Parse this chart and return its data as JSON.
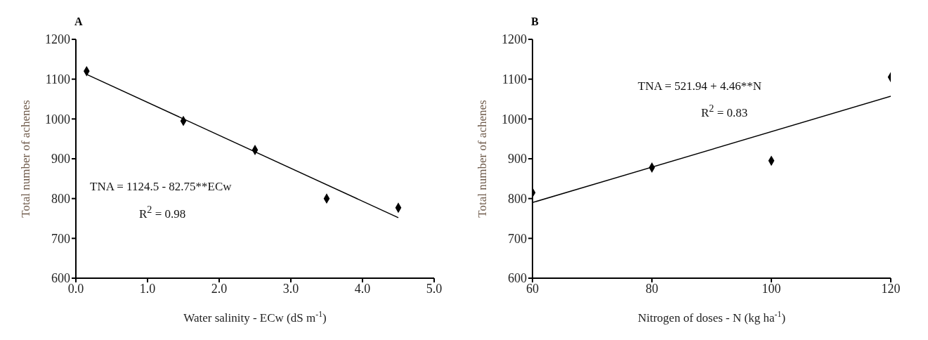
{
  "chart_data": [
    {
      "type": "scatter",
      "title": "A",
      "xlabel": "Water salinity - ECw (dS m$^{-1}$)",
      "ylabel": "Total number of achenes",
      "xlim": [
        0,
        5
      ],
      "xticks": [
        {
          "value": 0,
          "label": "0.0"
        },
        {
          "value": 1,
          "label": "1.0"
        },
        {
          "value": 2,
          "label": "2.0"
        },
        {
          "value": 3,
          "label": "3.0"
        },
        {
          "value": 4,
          "label": "4.0"
        },
        {
          "value": 5,
          "label": "5.0"
        }
      ],
      "ylim": [
        600,
        1200
      ],
      "yticks": [
        600,
        700,
        800,
        900,
        1000,
        1100,
        1200
      ],
      "grid": false,
      "annotations": [
        "TNA = 1124.5 - 82.75**ECw",
        "R$^{2}$ = 0.98"
      ],
      "series": [
        {
          "x": [
            0.15,
            1.5,
            2.5,
            3.5,
            4.5
          ],
          "values": [
            1120,
            995,
            922,
            800,
            777
          ],
          "color": "#000000",
          "marker": "diamond"
        },
        {
          "type": "line",
          "x": [
            0.15,
            4.5
          ],
          "values": [
            1112,
            752
          ],
          "color": "#000000",
          "marker": "none"
        }
      ]
    },
    {
      "type": "scatter",
      "title": "B",
      "xlabel": "Nitrogen of doses - N (kg ha$^{-1}$)",
      "ylabel": "Total number of achenes",
      "xlim": [
        60,
        120
      ],
      "xticks": [
        60,
        80,
        100,
        120
      ],
      "ylim": [
        600,
        1200
      ],
      "yticks": [
        600,
        700,
        800,
        900,
        1000,
        1100,
        1200
      ],
      "grid": false,
      "annotations": [
        "TNA = 521.94 + 4.46**N",
        "R$^{2}$ = 0.83"
      ],
      "series": [
        {
          "x": [
            60,
            80,
            100,
            120
          ],
          "values": [
            815,
            878,
            895,
            1105
          ],
          "color": "#000000",
          "marker": "diamond"
        },
        {
          "type": "line",
          "x": [
            60,
            120
          ],
          "values": [
            790,
            1057
          ],
          "color": "#000000",
          "marker": "none"
        }
      ]
    }
  ]
}
